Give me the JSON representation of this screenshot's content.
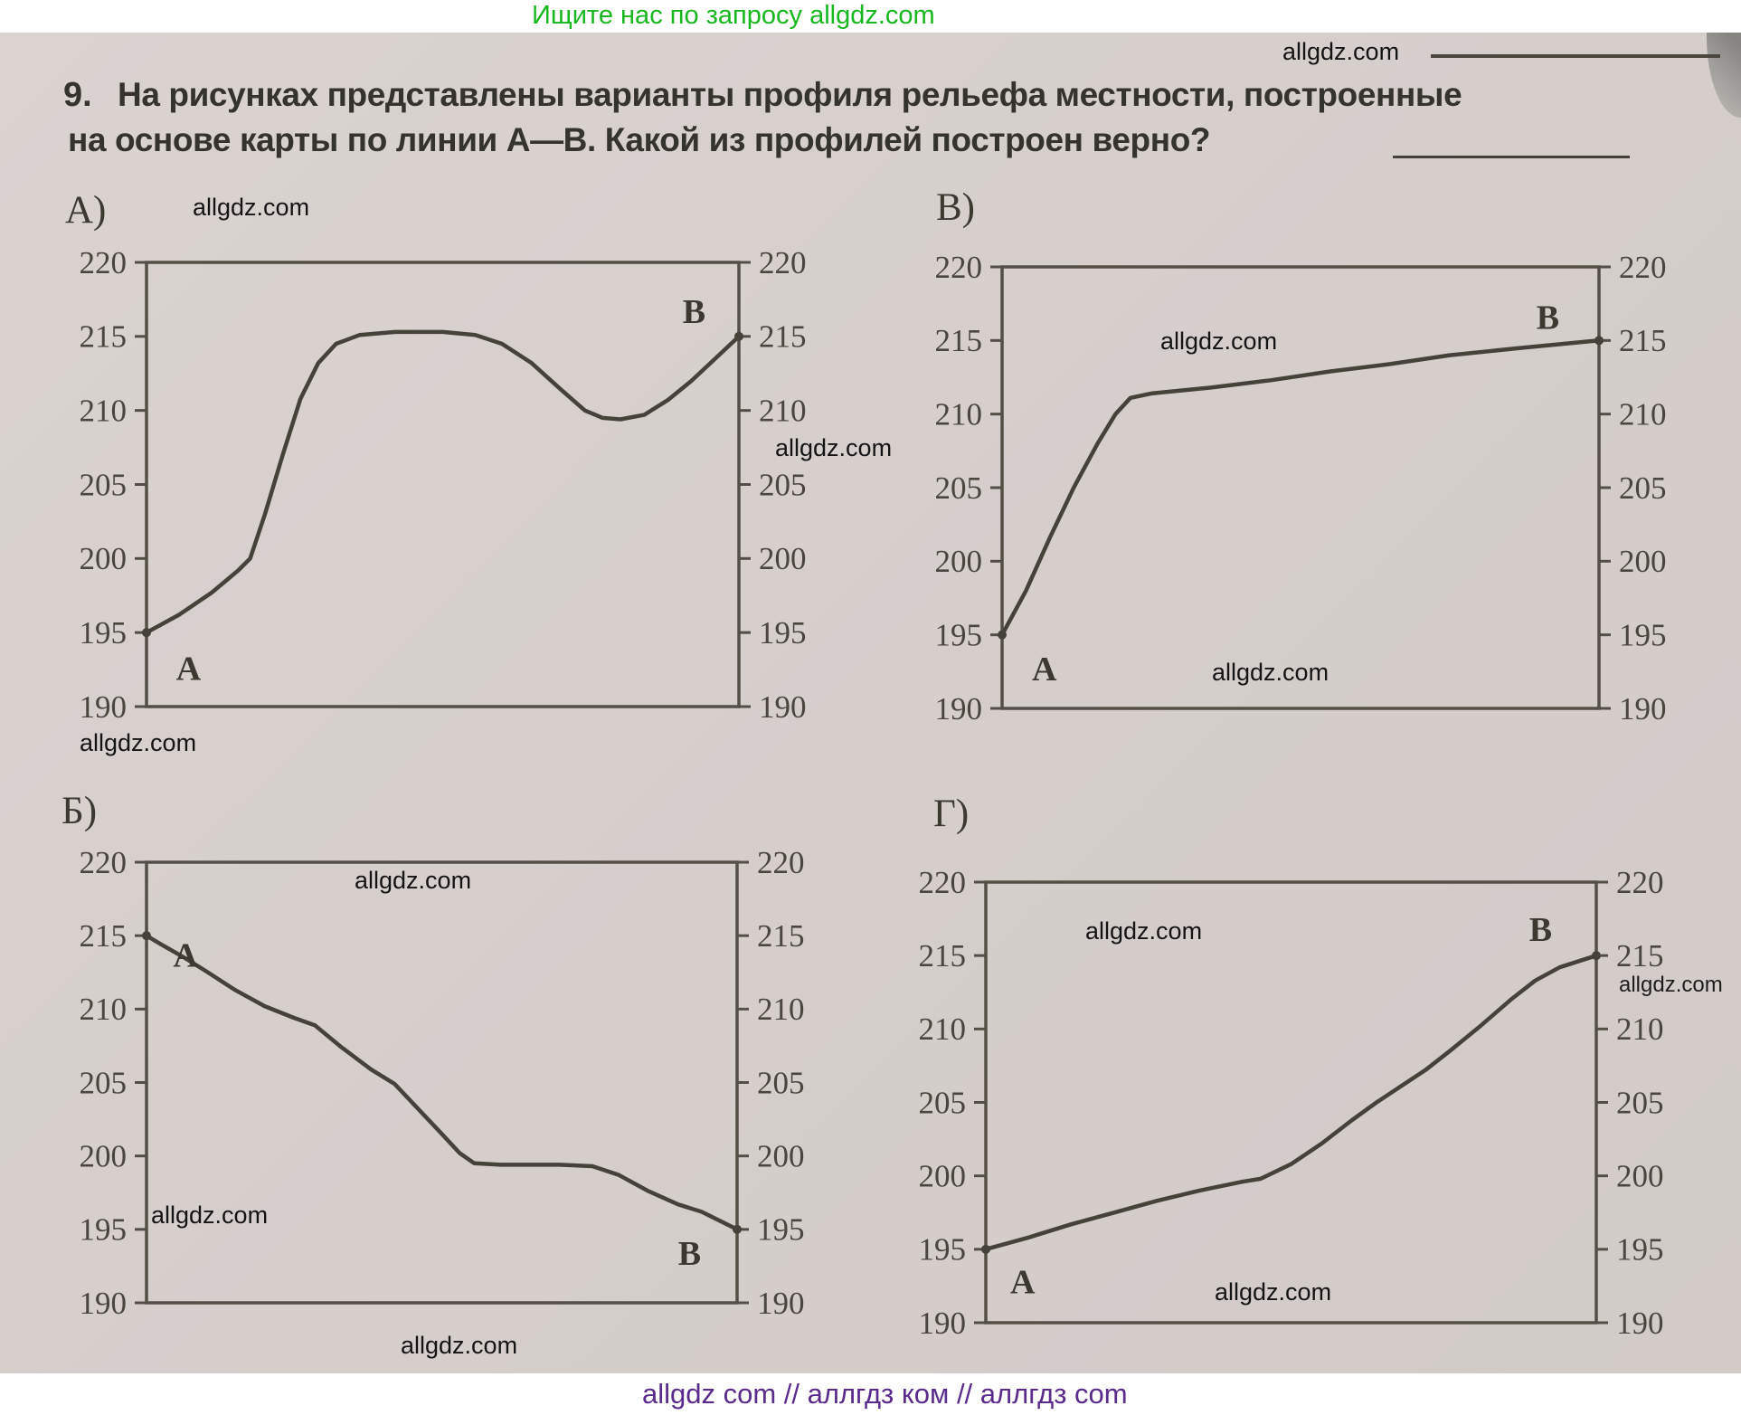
{
  "header": {
    "text": "Ищите нас по запросу allgdz.com"
  },
  "footer": {
    "text": "allgdz com  //  аллгдз ком  //  аллгдз com"
  },
  "watermark": {
    "site": "allgdz.com"
  },
  "question": {
    "number": "9.",
    "line1": "На рисунках представлены варианты профиля рельефа местности, построенные",
    "line2": "на основе карты по линии А—В. Какой из профилей построен верно?"
  },
  "colors": {
    "header_green": "#17b71e",
    "footer_purple": "#5a2a8c",
    "paper": "#d6cfcc",
    "ink": "#45423a"
  },
  "chart_data": [
    {
      "id": "a",
      "type": "line",
      "panel_label": "А)",
      "start_label": "A",
      "end_label": "B",
      "ylabel": "",
      "xlabel": "",
      "ylim": [
        190,
        220
      ],
      "y_ticks": [
        220,
        215,
        210,
        205,
        200,
        195,
        190
      ],
      "points": [
        [
          0,
          195
        ],
        [
          0.055,
          196.2
        ],
        [
          0.11,
          197.7
        ],
        [
          0.155,
          199.2
        ],
        [
          0.175,
          200
        ],
        [
          0.2,
          203
        ],
        [
          0.23,
          207
        ],
        [
          0.26,
          210.8
        ],
        [
          0.29,
          213.2
        ],
        [
          0.32,
          214.5
        ],
        [
          0.36,
          215.1
        ],
        [
          0.42,
          215.3
        ],
        [
          0.5,
          215.3
        ],
        [
          0.555,
          215.1
        ],
        [
          0.6,
          214.5
        ],
        [
          0.65,
          213.2
        ],
        [
          0.7,
          211.4
        ],
        [
          0.74,
          210
        ],
        [
          0.77,
          209.5
        ],
        [
          0.8,
          209.4
        ],
        [
          0.84,
          209.7
        ],
        [
          0.88,
          210.7
        ],
        [
          0.92,
          212
        ],
        [
          0.96,
          213.5
        ],
        [
          1,
          215
        ]
      ]
    },
    {
      "id": "v",
      "type": "line",
      "panel_label": "В)",
      "start_label": "A",
      "end_label": "B",
      "ylabel": "",
      "xlabel": "",
      "ylim": [
        190,
        220
      ],
      "y_ticks": [
        220,
        215,
        210,
        205,
        200,
        195,
        190
      ],
      "points": [
        [
          0,
          195
        ],
        [
          0.04,
          198
        ],
        [
          0.08,
          201.6
        ],
        [
          0.12,
          205
        ],
        [
          0.16,
          208
        ],
        [
          0.19,
          210
        ],
        [
          0.215,
          211.1
        ],
        [
          0.25,
          211.4
        ],
        [
          0.35,
          211.8
        ],
        [
          0.45,
          212.3
        ],
        [
          0.55,
          212.9
        ],
        [
          0.65,
          213.4
        ],
        [
          0.75,
          214
        ],
        [
          0.87,
          214.5
        ],
        [
          1,
          215
        ]
      ]
    },
    {
      "id": "b",
      "type": "line",
      "panel_label": "Б)",
      "start_label": "A",
      "end_label": "B",
      "ylabel": "",
      "xlabel": "",
      "ylim": [
        190,
        220
      ],
      "y_ticks": [
        220,
        215,
        210,
        205,
        200,
        195,
        190
      ],
      "points": [
        [
          0,
          215
        ],
        [
          0.025,
          214.4
        ],
        [
          0.06,
          213.6
        ],
        [
          0.1,
          212.6
        ],
        [
          0.15,
          211.3
        ],
        [
          0.2,
          210.2
        ],
        [
          0.25,
          209.4
        ],
        [
          0.285,
          208.9
        ],
        [
          0.33,
          207.4
        ],
        [
          0.38,
          205.9
        ],
        [
          0.42,
          204.9
        ],
        [
          0.46,
          203.2
        ],
        [
          0.5,
          201.5
        ],
        [
          0.53,
          200.2
        ],
        [
          0.555,
          199.5
        ],
        [
          0.6,
          199.4
        ],
        [
          0.7,
          199.4
        ],
        [
          0.755,
          199.3
        ],
        [
          0.8,
          198.7
        ],
        [
          0.85,
          197.6
        ],
        [
          0.9,
          196.7
        ],
        [
          0.94,
          196.2
        ],
        [
          1,
          195
        ]
      ]
    },
    {
      "id": "g",
      "type": "line",
      "panel_label": "Г)",
      "start_label": "A",
      "end_label": "B",
      "ylabel": "",
      "xlabel": "",
      "ylim": [
        190,
        220
      ],
      "y_ticks": [
        220,
        215,
        210,
        205,
        200,
        195,
        190
      ],
      "points": [
        [
          0,
          195
        ],
        [
          0.07,
          195.8
        ],
        [
          0.14,
          196.7
        ],
        [
          0.21,
          197.5
        ],
        [
          0.28,
          198.3
        ],
        [
          0.35,
          199
        ],
        [
          0.42,
          199.6
        ],
        [
          0.45,
          199.8
        ],
        [
          0.5,
          200.8
        ],
        [
          0.55,
          202.2
        ],
        [
          0.6,
          203.8
        ],
        [
          0.64,
          205
        ],
        [
          0.68,
          206.1
        ],
        [
          0.72,
          207.2
        ],
        [
          0.76,
          208.5
        ],
        [
          0.81,
          210.2
        ],
        [
          0.86,
          212
        ],
        [
          0.9,
          213.3
        ],
        [
          0.94,
          214.2
        ],
        [
          1,
          215
        ]
      ]
    }
  ]
}
